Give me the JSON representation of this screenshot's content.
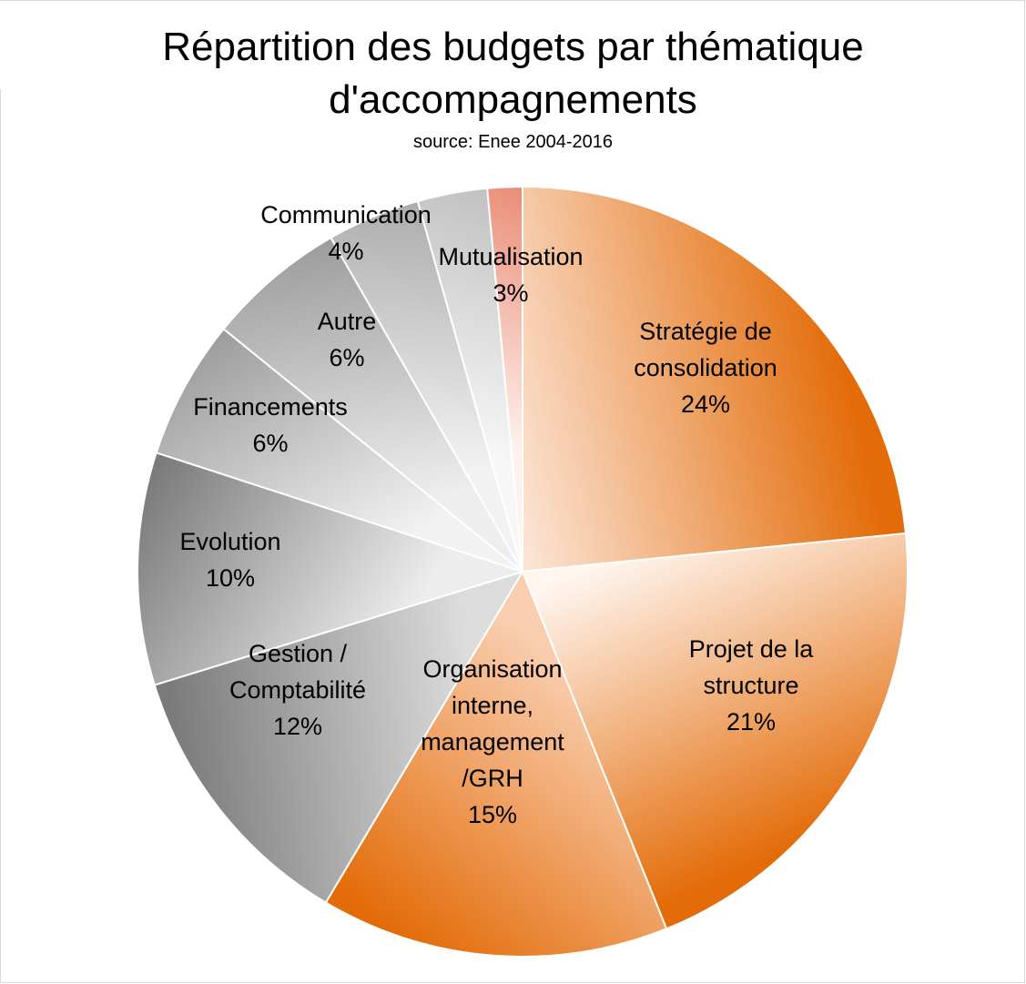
{
  "chart_data": {
    "type": "pie",
    "title": "Répartition des budgets par thématique d'accompagnements",
    "title_lines": [
      "Répartition des budgets par thématique",
      "d'accompagnements"
    ],
    "subtitle": "source: Enee 2004-2016",
    "legend": "none",
    "slices": [
      {
        "name": "Stratégie de consolidation",
        "label_lines": [
          "Stratégie de",
          "consolidation"
        ],
        "value": 24,
        "value_label": "24%",
        "color": "#E36C09",
        "gradient_from": "#FBE3D3"
      },
      {
        "name": "Projet de la structure",
        "label_lines": [
          "Projet de la",
          "structure"
        ],
        "value": 21,
        "value_label": "21%",
        "color": "#E36C09",
        "gradient_from": "#FFF6F0"
      },
      {
        "name": "Organisation interne, management /GRH",
        "label_lines": [
          "Organisation",
          "interne,",
          "management",
          "/GRH"
        ],
        "value": 15,
        "value_label": "15%",
        "color": "#E36C09",
        "gradient_from": "#F9CDAE"
      },
      {
        "name": "Gestion / Comptabilité",
        "label_lines": [
          "Gestion /",
          "Comptabilité"
        ],
        "value": 12,
        "value_label": "12%",
        "color": "#7A7A7A",
        "gradient_from": "#DCDCDC"
      },
      {
        "name": "Evolution",
        "label_lines": [
          "Evolution"
        ],
        "value": 10,
        "value_label": "10%",
        "color": "#7A7A7A",
        "gradient_from": "#EDEDED"
      },
      {
        "name": "Financements",
        "label_lines": [
          "Financements"
        ],
        "value": 6,
        "value_label": "6%",
        "color": "#9A9A9A",
        "gradient_from": "#F2F2F2"
      },
      {
        "name": "Autre",
        "label_lines": [
          "Autre"
        ],
        "value": 6,
        "value_label": "6%",
        "color": "#9A9A9A",
        "gradient_from": "#EEEEEE"
      },
      {
        "name": "Communication",
        "label_lines": [
          "Communication"
        ],
        "value": 4,
        "value_label": "4%",
        "color": "#A8A8A8",
        "gradient_from": "#F2F2F2"
      },
      {
        "name": "Mutualisation",
        "label_lines": [
          "Mutualisation"
        ],
        "value": 3,
        "value_label": "3%",
        "color": "#BDBDBD",
        "gradient_from": "#F7F7F7"
      },
      {
        "name": "",
        "label_lines": [],
        "value": 1.5,
        "value_label": "",
        "color": "#E8826A",
        "gradient_from": "#FFF2EE"
      }
    ]
  }
}
